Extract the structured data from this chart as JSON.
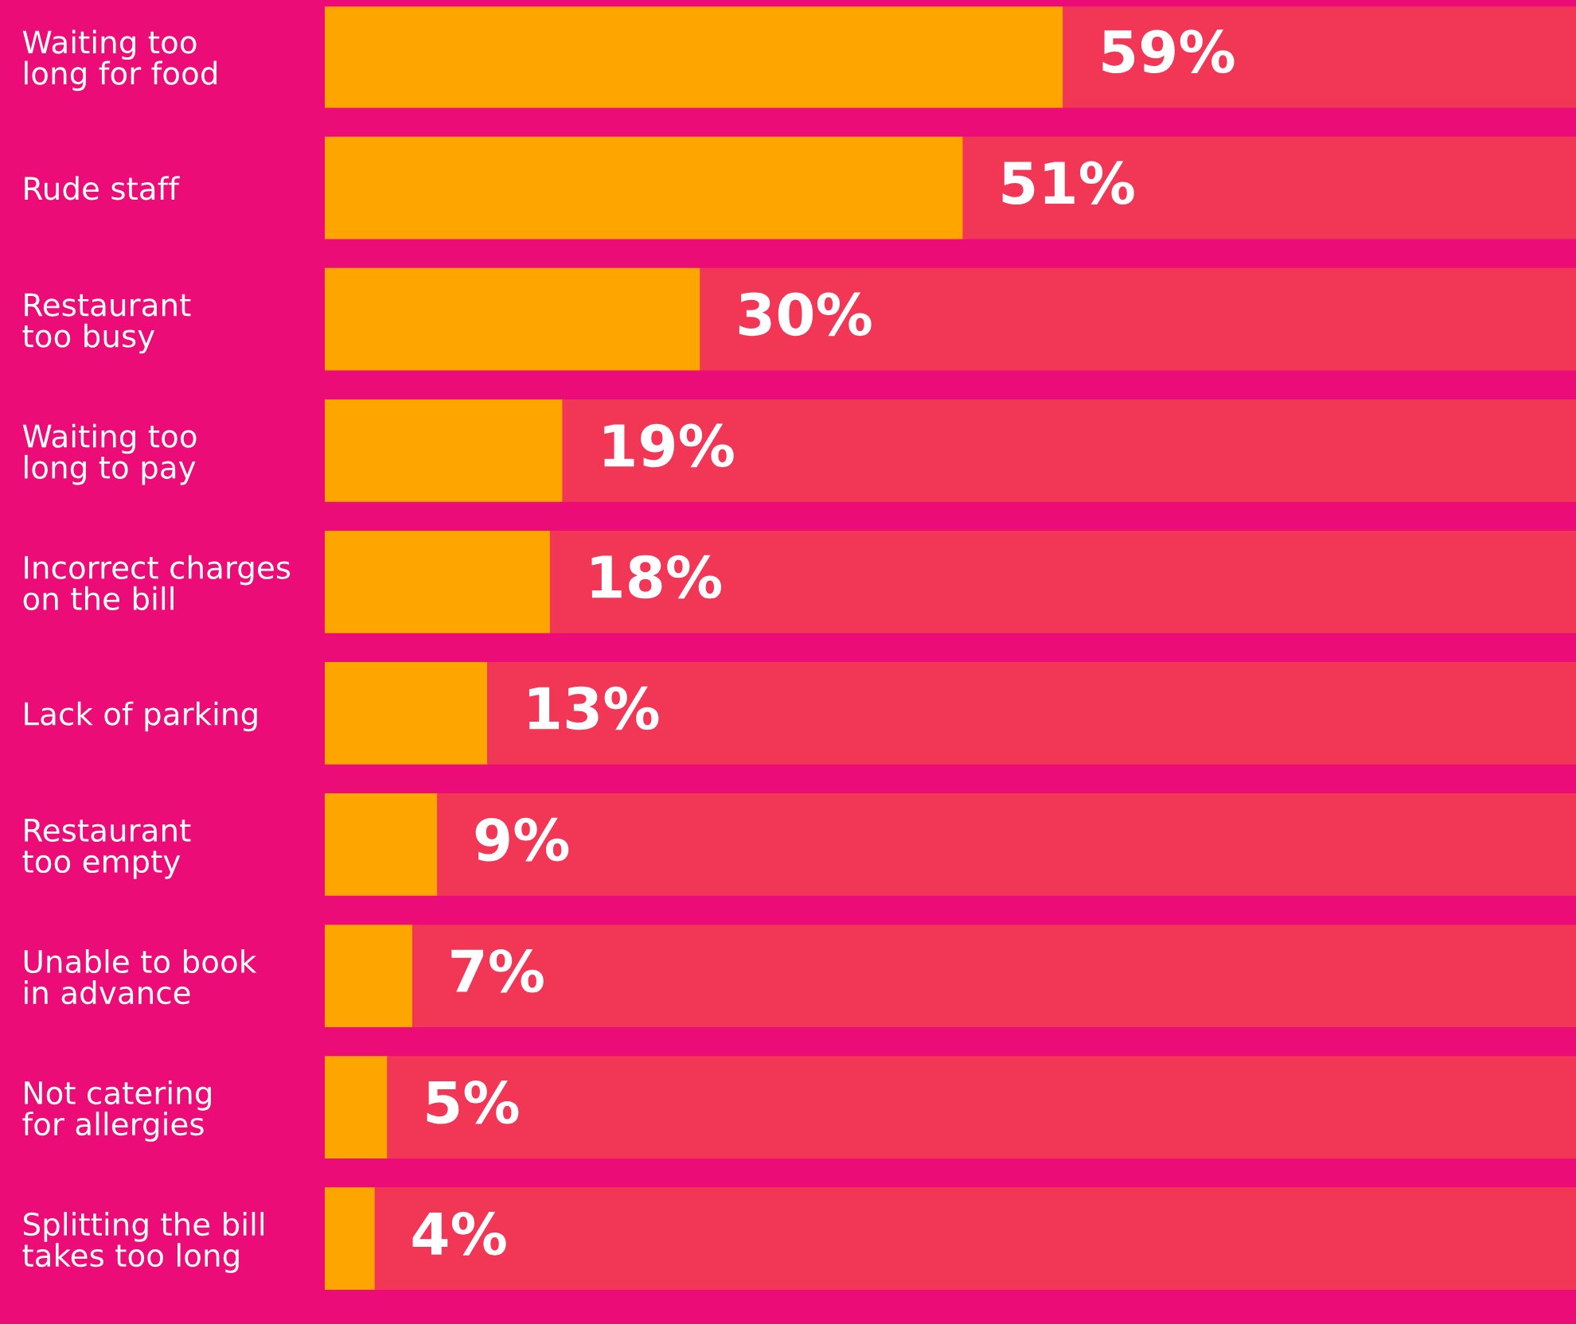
{
  "chart_data": {
    "type": "bar",
    "orientation": "horizontal",
    "stacked": true,
    "categories": [
      "Waiting too\nlong for food",
      "Rude staff",
      "Restaurant\ntoo busy",
      "Waiting too\nlong to pay",
      "Incorrect charges\non the bill",
      "Lack of parking",
      "Restaurant\ntoo empty",
      "Unable to book\nin advance",
      "Not catering\nfor allergies",
      "Splitting the bill\ntakes too long"
    ],
    "series": [
      {
        "color": "#ffa500",
        "values": [
          59,
          51,
          30,
          19,
          18,
          13,
          9,
          7,
          5,
          4
        ],
        "value_labels": [
          "59%",
          "51%",
          "30%",
          "19%",
          "18%",
          "13%",
          "9%",
          "7%",
          "5%",
          "4%"
        ]
      },
      {
        "color": "#f23656",
        "values": [
          41,
          49,
          70,
          81,
          82,
          87,
          91,
          93,
          95,
          96
        ]
      }
    ],
    "grid": false,
    "legend": false,
    "tick_labels": "y"
  }
}
